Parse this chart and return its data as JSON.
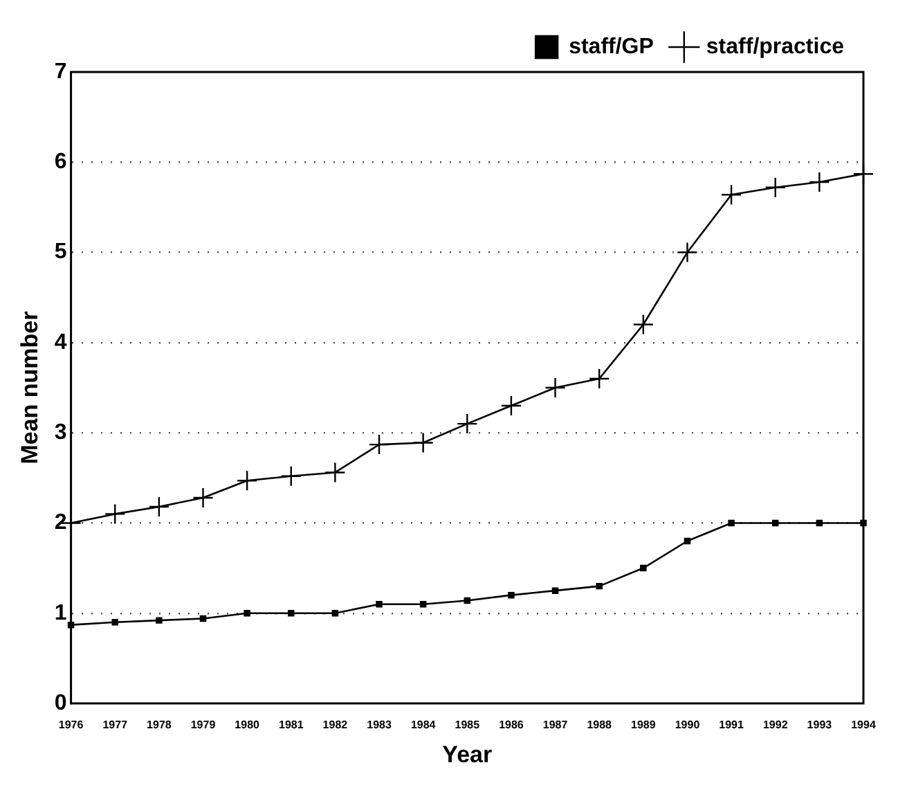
{
  "chart_data": {
    "type": "line",
    "xlabel": "Year",
    "ylabel": "Mean number",
    "categories": [
      "1976",
      "1977",
      "1978",
      "1979",
      "1980",
      "1981",
      "1982",
      "1983",
      "1984",
      "1985",
      "1986",
      "1987",
      "1988",
      "1989",
      "1990",
      "1991",
      "1992",
      "1993",
      "1994"
    ],
    "series": [
      {
        "name": "staff/GP",
        "color": "#000000",
        "marker": "square",
        "values": [
          0.87,
          0.9,
          0.92,
          0.94,
          1.0,
          1.0,
          1.0,
          1.1,
          1.1,
          1.14,
          1.2,
          1.25,
          1.3,
          1.5,
          1.8,
          2.0,
          2.0,
          2.0,
          2.0
        ]
      },
      {
        "name": "staff/practice",
        "color": "#000000",
        "marker": "cross",
        "values": [
          2.0,
          2.1,
          2.18,
          2.28,
          2.47,
          2.52,
          2.56,
          2.87,
          2.89,
          3.1,
          3.3,
          3.5,
          3.6,
          4.2,
          5.0,
          5.64,
          5.72,
          5.78,
          5.87
        ]
      }
    ],
    "ylim": [
      0,
      7
    ],
    "yticks": [
      0,
      1,
      2,
      3,
      4,
      5,
      6,
      7
    ],
    "grid": "y",
    "legend": "top right",
    "line_style": "solid"
  }
}
